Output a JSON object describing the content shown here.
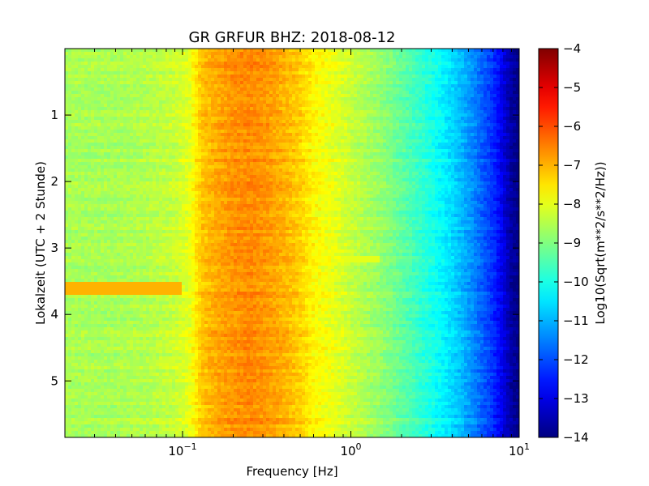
{
  "chart_data": {
    "type": "heatmap",
    "title": "GR GRFUR BHZ: 2018-08-12",
    "xlabel": "Frequency [Hz]",
    "ylabel": "Lokalzeit (UTC + 2 Stunde)",
    "x_scale": "log",
    "xlim": [
      0.02,
      10
    ],
    "ylim": [
      0,
      5.85
    ],
    "y_inverted": true,
    "x_ticks": [
      {
        "value": 0.1,
        "base": "10",
        "exp": "−1"
      },
      {
        "value": 1,
        "base": "10",
        "exp": "0"
      },
      {
        "value": 10,
        "base": "10",
        "exp": "1"
      }
    ],
    "y_ticks": [
      {
        "value": 1,
        "label": "1"
      },
      {
        "value": 2,
        "label": "2"
      },
      {
        "value": 3,
        "label": "3"
      },
      {
        "value": 4,
        "label": "4"
      },
      {
        "value": 5,
        "label": "5"
      }
    ],
    "colorbar": {
      "label": "Log10(Sqrt(m**2/s**2/Hz))",
      "colormap": "jet",
      "range": [
        -14,
        -4
      ],
      "ticks": [
        {
          "value": -4,
          "label": "−4"
        },
        {
          "value": -5,
          "label": "−5"
        },
        {
          "value": -6,
          "label": "−6"
        },
        {
          "value": -7,
          "label": "−7"
        },
        {
          "value": -8,
          "label": "−8"
        },
        {
          "value": -9,
          "label": "−9"
        },
        {
          "value": -10,
          "label": "−10"
        },
        {
          "value": -11,
          "label": "−11"
        },
        {
          "value": -12,
          "label": "−12"
        },
        {
          "value": -13,
          "label": "−13"
        },
        {
          "value": -14,
          "label": "−14"
        }
      ]
    },
    "spectrum_profile": {
      "frequency_hz": [
        0.02,
        0.04,
        0.06,
        0.09,
        0.11,
        0.13,
        0.16,
        0.2,
        0.25,
        0.3,
        0.4,
        0.5,
        0.6,
        0.8,
        1.0,
        1.5,
        2.0,
        3.0,
        4.0,
        5.0,
        6.0,
        7.0,
        8.0,
        9.0,
        10.0
      ],
      "log10_amplitude": [
        -8.6,
        -8.6,
        -8.5,
        -8.3,
        -8.0,
        -7.2,
        -6.9,
        -6.7,
        -6.6,
        -6.7,
        -7.0,
        -7.3,
        -7.7,
        -8.0,
        -8.3,
        -8.8,
        -9.3,
        -10.0,
        -10.6,
        -11.2,
        -11.8,
        -12.3,
        -13.0,
        -13.7,
        -14.0
      ]
    },
    "events": [
      {
        "time_start": 3.5,
        "time_end": 3.7,
        "freq_max_hz": 0.1,
        "log10_amplitude": -7.0
      },
      {
        "time_start": 3.1,
        "time_end": 3.2,
        "freq_min_hz": 0.8,
        "freq_max_hz": 1.5,
        "log10_amplitude": -8.0
      }
    ]
  }
}
